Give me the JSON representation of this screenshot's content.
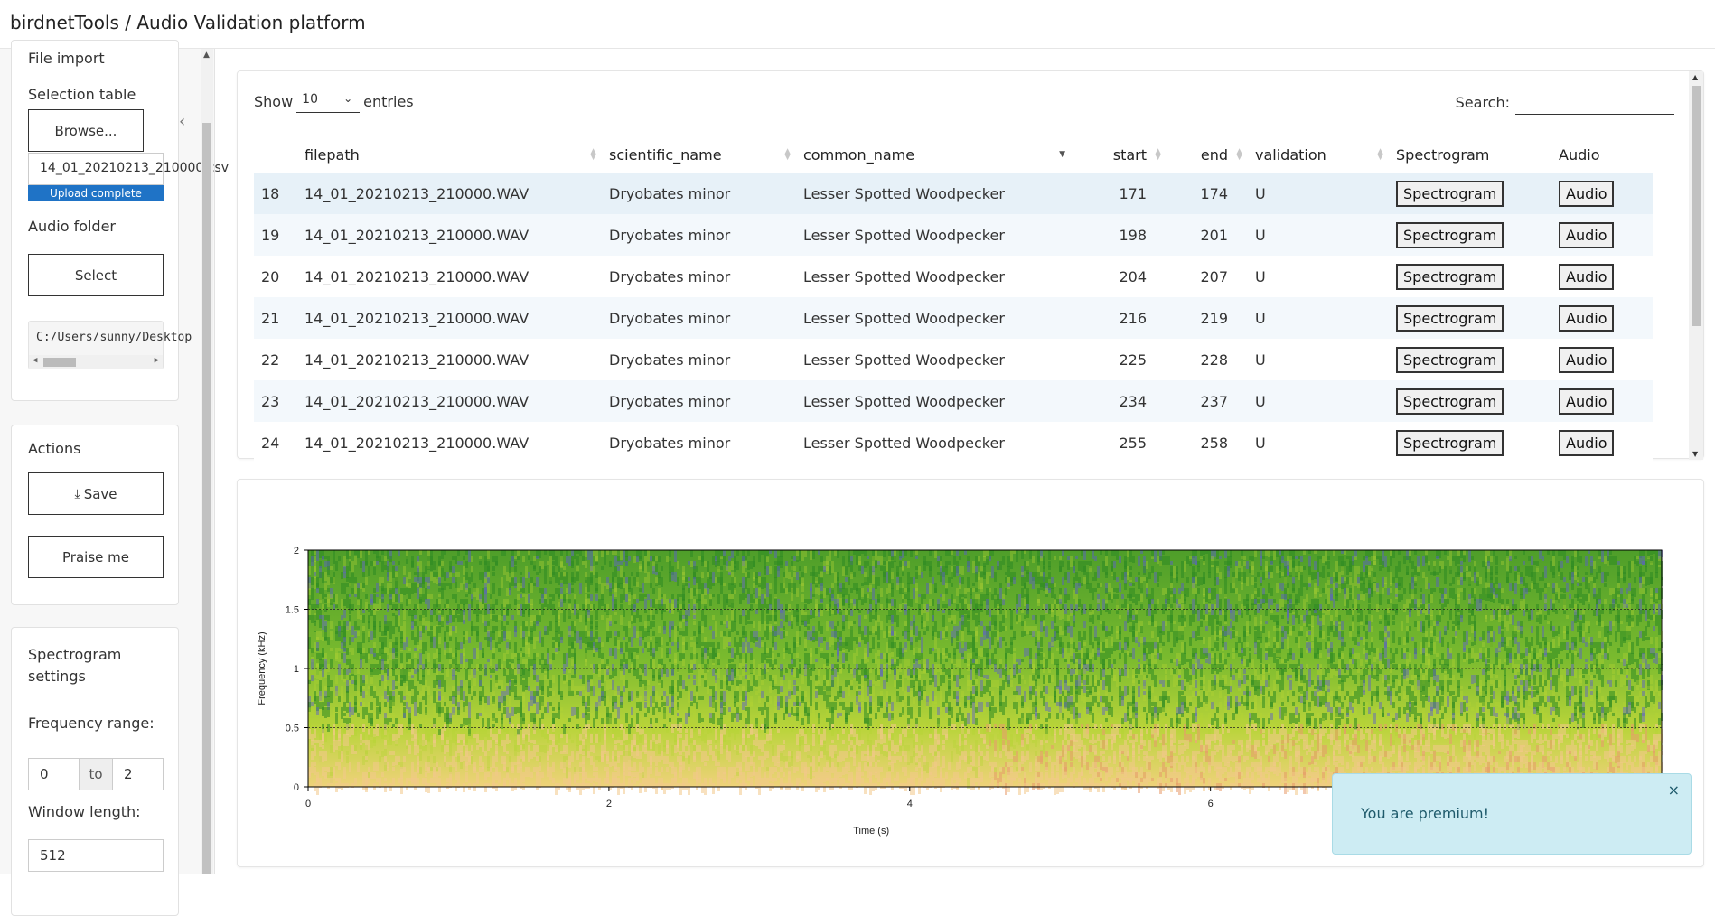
{
  "app": {
    "title": "birdnetTools / Audio Validation platform"
  },
  "sidebar": {
    "file_import": {
      "heading": "File import",
      "selection_table_label": "Selection table",
      "browse_label": "Browse...",
      "file_name": "14_01_20210213_210000.csv",
      "upload_status": "Upload complete",
      "upload_progress": 1.0,
      "audio_folder_label": "Audio folder",
      "select_label": "Select",
      "folder_path": "C:/Users/sunny/Desktop"
    },
    "actions": {
      "heading": "Actions",
      "save_label": "Save",
      "praise_label": "Praise me"
    },
    "spectrogram_settings": {
      "heading_line1": "Spectrogram",
      "heading_line2": "settings",
      "freq_range_label": "Frequency range:",
      "freq_min": "0",
      "freq_to": "to",
      "freq_max": "2",
      "window_length_label": "Window length:",
      "window_length": "512"
    }
  },
  "table": {
    "show_label": "Show",
    "entries_value": "10",
    "entries_label": "entries",
    "search_label": "Search:",
    "search_value": "",
    "columns": [
      "",
      "filepath",
      "scientific_name",
      "common_name",
      "start",
      "end",
      "validation",
      "Spectrogram",
      "Audio"
    ],
    "spectrogram_btn": "Spectrogram",
    "audio_btn": "Audio",
    "rows": [
      {
        "id": "18",
        "filepath": "14_01_20210213_210000.WAV",
        "scientific_name": "Dryobates minor",
        "common_name": "Lesser Spotted Woodpecker",
        "start": "171",
        "end": "174",
        "validation": "U"
      },
      {
        "id": "19",
        "filepath": "14_01_20210213_210000.WAV",
        "scientific_name": "Dryobates minor",
        "common_name": "Lesser Spotted Woodpecker",
        "start": "198",
        "end": "201",
        "validation": "U"
      },
      {
        "id": "20",
        "filepath": "14_01_20210213_210000.WAV",
        "scientific_name": "Dryobates minor",
        "common_name": "Lesser Spotted Woodpecker",
        "start": "204",
        "end": "207",
        "validation": "U"
      },
      {
        "id": "21",
        "filepath": "14_01_20210213_210000.WAV",
        "scientific_name": "Dryobates minor",
        "common_name": "Lesser Spotted Woodpecker",
        "start": "216",
        "end": "219",
        "validation": "U"
      },
      {
        "id": "22",
        "filepath": "14_01_20210213_210000.WAV",
        "scientific_name": "Dryobates minor",
        "common_name": "Lesser Spotted Woodpecker",
        "start": "225",
        "end": "228",
        "validation": "U"
      },
      {
        "id": "23",
        "filepath": "14_01_20210213_210000.WAV",
        "scientific_name": "Dryobates minor",
        "common_name": "Lesser Spotted Woodpecker",
        "start": "234",
        "end": "237",
        "validation": "U"
      },
      {
        "id": "24",
        "filepath": "14_01_20210213_210000.WAV",
        "scientific_name": "Dryobates minor",
        "common_name": "Lesser Spotted Woodpecker",
        "start": "255",
        "end": "258",
        "validation": "U"
      }
    ]
  },
  "chart_data": {
    "type": "heatmap",
    "title": "",
    "xlabel": "Time (s)",
    "ylabel": "Frequency (kHz)",
    "xlim": [
      0,
      9
    ],
    "ylim": [
      0,
      2
    ],
    "xticks": [
      "0",
      "2",
      "4",
      "6"
    ],
    "yticks": [
      "0",
      "0.5",
      "1",
      "1.5",
      "2"
    ],
    "grid": true,
    "colors": {
      "low": "#2e8b22",
      "mid": "#b5d334",
      "high": "#f3c98a",
      "peak": "#e89a6c",
      "noise": "#5a5ad0"
    }
  },
  "toast": {
    "message": "You are premium!",
    "close": "×"
  }
}
